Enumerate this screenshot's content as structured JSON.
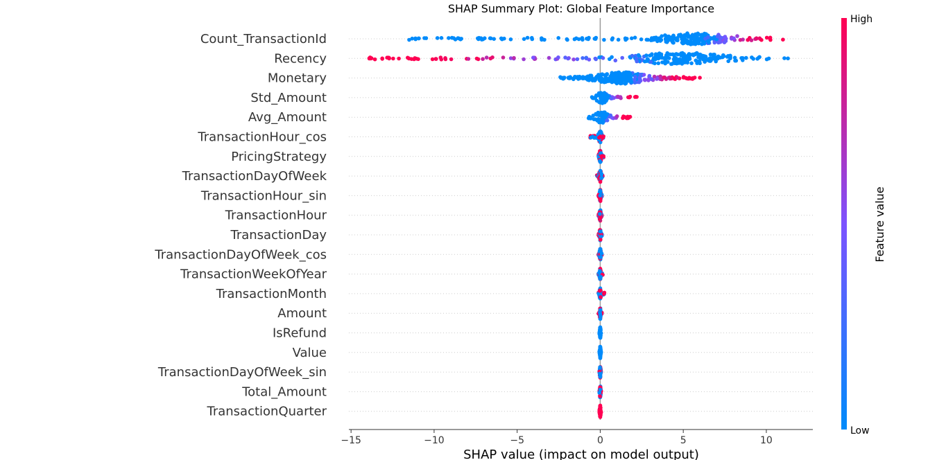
{
  "chart_data": {
    "type": "scatter",
    "title": "SHAP Summary Plot: Global Feature Importance",
    "xlabel": "SHAP value (impact on model output)",
    "xlim": [
      -15.8,
      12.8
    ],
    "xticks": [
      -15,
      -10,
      -5,
      0,
      5,
      10
    ],
    "xtick_labels": [
      "−15",
      "−10",
      "−5",
      "0",
      "5",
      "10"
    ],
    "colorbar": {
      "label": "Feature value",
      "high": "High",
      "low": "Low",
      "low_color": "#008bfb",
      "high_color": "#ff0052"
    },
    "features": [
      {
        "name": "Count_TransactionId",
        "min": -11.5,
        "max": 11.0,
        "center": 5.8,
        "spread": 1.7,
        "color_trend": "positive"
      },
      {
        "name": "Recency",
        "min": -13.9,
        "max": 11.3,
        "center": 4.7,
        "spread": 2.2,
        "color_trend": "negative"
      },
      {
        "name": "Monetary",
        "min": -2.4,
        "max": 6.0,
        "center": 1.3,
        "spread": 1.2,
        "color_trend": "positive"
      },
      {
        "name": "Std_Amount",
        "min": -0.5,
        "max": 2.2,
        "center": 0.1,
        "spread": 0.25,
        "color_trend": "positive"
      },
      {
        "name": "Avg_Amount",
        "min": -0.7,
        "max": 1.8,
        "center": 0.1,
        "spread": 0.3,
        "color_trend": "positive"
      },
      {
        "name": "TransactionHour_cos",
        "min": -0.6,
        "max": 0.2,
        "center": 0.0,
        "spread": 0.08,
        "color_trend": "mixed"
      },
      {
        "name": "PricingStrategy",
        "min": -0.1,
        "max": 0.2,
        "center": 0.0,
        "spread": 0.05,
        "color_trend": "mixed"
      },
      {
        "name": "TransactionDayOfWeek",
        "min": -0.2,
        "max": 0.15,
        "center": 0.0,
        "spread": 0.05,
        "color_trend": "mixed"
      },
      {
        "name": "TransactionHour_sin",
        "min": -0.1,
        "max": 0.1,
        "center": 0.0,
        "spread": 0.03,
        "color_trend": "mixed"
      },
      {
        "name": "TransactionHour",
        "min": -0.1,
        "max": 0.1,
        "center": 0.0,
        "spread": 0.03,
        "color_trend": "mixed"
      },
      {
        "name": "TransactionDay",
        "min": -0.1,
        "max": 0.1,
        "center": 0.0,
        "spread": 0.03,
        "color_trend": "mixed"
      },
      {
        "name": "TransactionDayOfWeek_cos",
        "min": -0.1,
        "max": 0.1,
        "center": 0.0,
        "spread": 0.03,
        "color_trend": "mixed"
      },
      {
        "name": "TransactionWeekOfYear",
        "min": -0.1,
        "max": 0.15,
        "center": 0.0,
        "spread": 0.03,
        "color_trend": "mixed"
      },
      {
        "name": "TransactionMonth",
        "min": -0.1,
        "max": 0.25,
        "center": 0.0,
        "spread": 0.03,
        "color_trend": "mixed"
      },
      {
        "name": "Amount",
        "min": -0.1,
        "max": 0.1,
        "center": 0.0,
        "spread": 0.02,
        "color_trend": "mixed"
      },
      {
        "name": "IsRefund",
        "min": -0.05,
        "max": 0.05,
        "center": 0.0,
        "spread": 0.02,
        "color_trend": "low"
      },
      {
        "name": "Value",
        "min": -0.05,
        "max": 0.05,
        "center": 0.0,
        "spread": 0.02,
        "color_trend": "low"
      },
      {
        "name": "TransactionDayOfWeek_sin",
        "min": -0.05,
        "max": 0.05,
        "center": 0.0,
        "spread": 0.02,
        "color_trend": "mixed"
      },
      {
        "name": "Total_Amount",
        "min": -0.05,
        "max": 0.05,
        "center": 0.0,
        "spread": 0.02,
        "color_trend": "mixed"
      },
      {
        "name": "TransactionQuarter",
        "min": -0.05,
        "max": 0.05,
        "center": 0.0,
        "spread": 0.02,
        "color_trend": "high"
      }
    ]
  }
}
